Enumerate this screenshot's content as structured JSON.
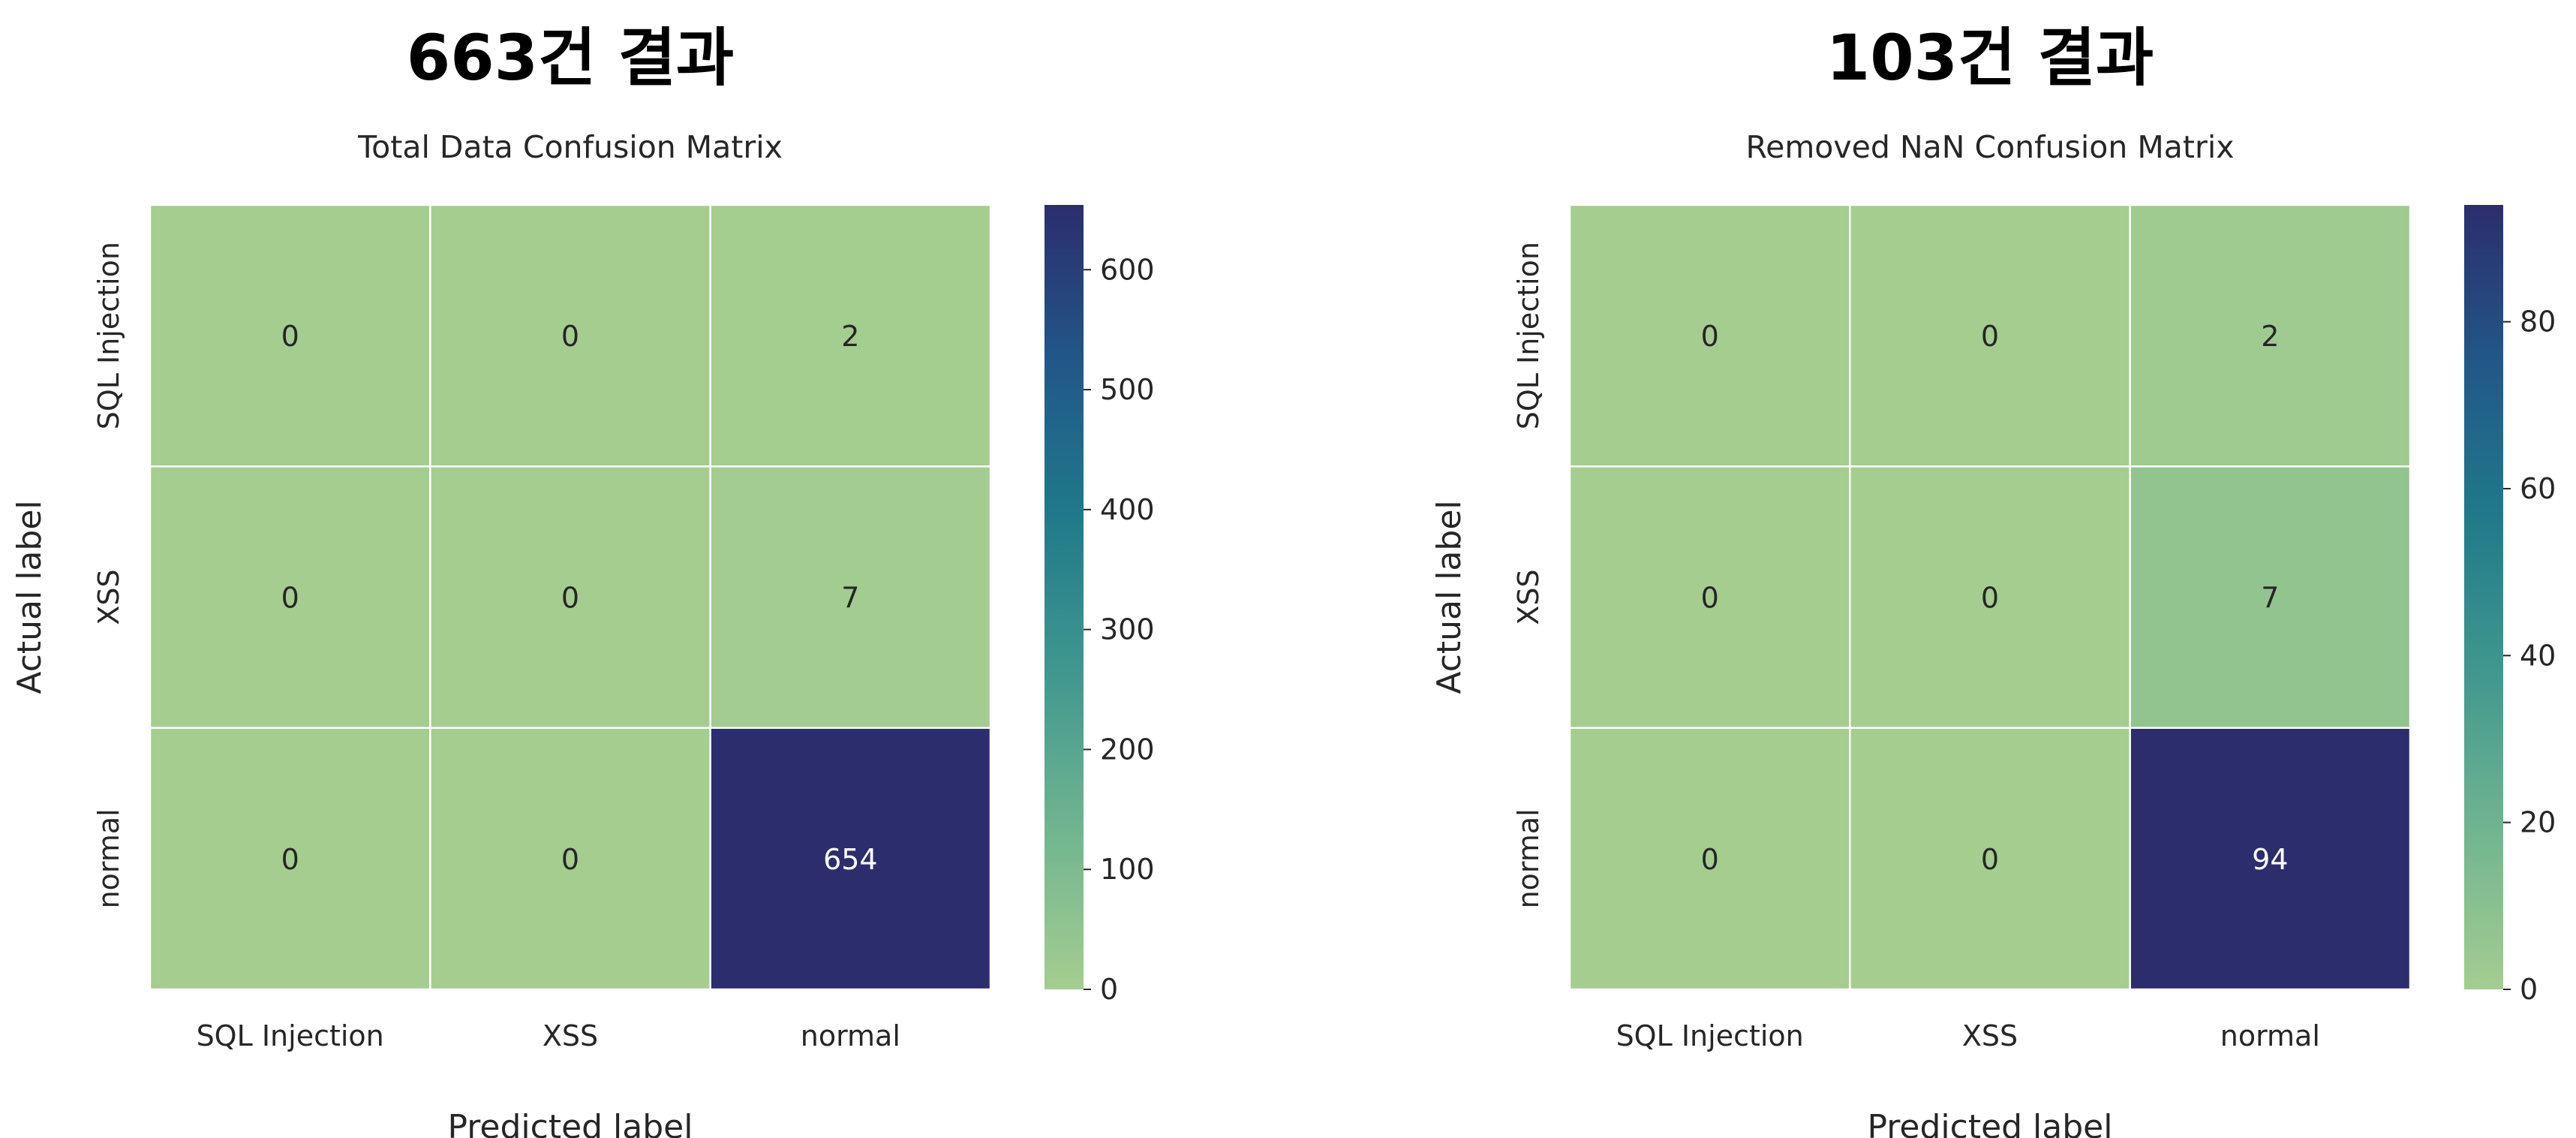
{
  "figure": {
    "panels": [
      {
        "heading": "663건 결과"
      },
      {
        "heading": "103건 결과"
      }
    ]
  },
  "chart_data": [
    {
      "type": "heatmap",
      "title": "Total Data Confusion Matrix",
      "xlabel": "Predicted label",
      "ylabel": "Actual label",
      "x_categories": [
        "SQL Injection",
        "XSS",
        "normal"
      ],
      "y_categories": [
        "SQL Injection",
        "XSS",
        "normal"
      ],
      "values": [
        [
          0,
          0,
          2
        ],
        [
          0,
          0,
          7
        ],
        [
          0,
          0,
          654
        ]
      ],
      "colorbar": {
        "min": 0,
        "max": 654,
        "ticks": [
          0,
          100,
          200,
          300,
          400,
          500,
          600
        ]
      },
      "colormap": "crest",
      "grid": true
    },
    {
      "type": "heatmap",
      "title": "Removed NaN Confusion Matrix",
      "xlabel": "Predicted label",
      "ylabel": "Actual label",
      "x_categories": [
        "SQL Injection",
        "XSS",
        "normal"
      ],
      "y_categories": [
        "SQL Injection",
        "XSS",
        "normal"
      ],
      "values": [
        [
          0,
          0,
          2
        ],
        [
          0,
          0,
          7
        ],
        [
          0,
          0,
          94
        ]
      ],
      "colorbar": {
        "min": 0,
        "max": 94,
        "ticks": [
          0,
          20,
          40,
          60,
          80
        ]
      },
      "colormap": "crest",
      "grid": true
    }
  ]
}
